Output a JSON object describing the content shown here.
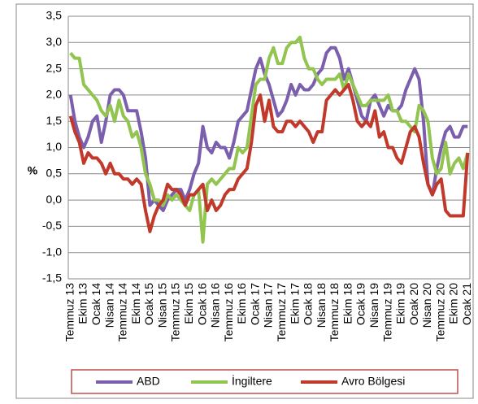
{
  "chart_data": {
    "type": "line",
    "y_label": "%",
    "categories": [
      "Temmuz 13",
      null,
      null,
      "Ekim 13",
      null,
      null,
      "Ocak 14",
      null,
      null,
      "Nisan 14",
      null,
      null,
      "Temmuz 14",
      null,
      null,
      "Ekim 14",
      null,
      null,
      "Ocak 15",
      null,
      null,
      "Nisan 15",
      null,
      null,
      "Temmuz 15",
      null,
      null,
      "Ekim 15",
      null,
      null,
      "Ocak 16",
      null,
      null,
      "Nisan 16",
      null,
      null,
      "Temmuz 16",
      null,
      null,
      "Ekim 16",
      null,
      null,
      "Ocak 17",
      null,
      null,
      "Nisan 17",
      null,
      null,
      "Temmuz 17",
      null,
      null,
      "Ekim 17",
      null,
      null,
      "Ocak 18",
      null,
      null,
      "Nisan 18",
      null,
      null,
      "Temmuz 18",
      null,
      null,
      "Ekim 18",
      null,
      null,
      "Ocak 19",
      null,
      null,
      "Nisan 19",
      null,
      null,
      "Temmuz 19",
      null,
      null,
      "Ekim 19",
      null,
      null,
      "Ocak 20",
      null,
      null,
      "Nisan 20",
      null,
      null,
      "Temmuz 20",
      null,
      null,
      "Ekim 20",
      null,
      null,
      "Ocak 21"
    ],
    "series": [
      {
        "name": "ABD",
        "color": "#7b5fac",
        "values": [
          2.0,
          1.5,
          1.2,
          1.0,
          1.2,
          1.5,
          1.6,
          1.1,
          1.5,
          2.0,
          2.1,
          2.1,
          2.0,
          1.7,
          1.7,
          1.7,
          1.3,
          0.8,
          -0.1,
          0.0,
          -0.1,
          -0.2,
          0.0,
          0.1,
          0.2,
          0.2,
          0.0,
          0.2,
          0.5,
          0.7,
          1.4,
          1.0,
          0.9,
          1.1,
          1.0,
          1.0,
          0.8,
          1.1,
          1.5,
          1.6,
          1.7,
          2.1,
          2.5,
          2.7,
          2.4,
          2.2,
          1.9,
          1.6,
          1.7,
          1.9,
          2.2,
          2.0,
          2.2,
          2.1,
          2.1,
          2.2,
          2.4,
          2.5,
          2.8,
          2.9,
          2.9,
          2.7,
          2.3,
          2.5,
          2.2,
          1.9,
          1.6,
          1.5,
          1.9,
          2.0,
          1.8,
          1.6,
          1.8,
          1.7,
          1.7,
          1.8,
          2.1,
          2.3,
          2.5,
          2.3,
          1.5,
          0.3,
          0.1,
          0.6,
          1.0,
          1.3,
          1.4,
          1.2,
          1.2,
          1.4,
          1.4
        ]
      },
      {
        "name": "İngiltere",
        "color": "#92c450",
        "values": [
          2.8,
          2.7,
          2.7,
          2.2,
          2.1,
          2.0,
          1.9,
          1.7,
          1.6,
          1.8,
          1.5,
          1.9,
          1.6,
          1.5,
          1.2,
          1.3,
          1.0,
          0.5,
          0.3,
          0.0,
          0.0,
          -0.1,
          0.1,
          0.0,
          0.1,
          0.0,
          -0.1,
          -0.2,
          0.1,
          0.2,
          -0.8,
          0.3,
          0.4,
          0.3,
          0.4,
          0.5,
          0.6,
          0.6,
          1.0,
          0.9,
          1.0,
          1.6,
          2.2,
          2.3,
          2.3,
          2.7,
          2.9,
          2.6,
          2.6,
          2.9,
          3.0,
          3.0,
          3.1,
          2.7,
          2.5,
          2.5,
          2.3,
          2.2,
          2.3,
          2.3,
          2.3,
          2.4,
          2.1,
          2.4,
          2.2,
          2.0,
          1.8,
          1.8,
          1.9,
          1.9,
          1.9,
          1.9,
          2.0,
          1.7,
          1.7,
          1.5,
          1.5,
          1.4,
          1.3,
          1.8,
          1.7,
          1.5,
          0.8,
          0.5,
          0.6,
          1.1,
          0.5,
          0.7,
          0.8,
          0.6,
          0.9
        ]
      },
      {
        "name": "Avro Bölgesi",
        "color": "#c0392b",
        "values": [
          1.6,
          1.3,
          1.1,
          0.7,
          0.9,
          0.8,
          0.8,
          0.7,
          0.5,
          0.7,
          0.5,
          0.5,
          0.4,
          0.4,
          0.3,
          0.4,
          0.3,
          -0.2,
          -0.6,
          -0.3,
          -0.1,
          0.0,
          0.3,
          0.2,
          0.2,
          0.1,
          -0.1,
          0.1,
          0.1,
          0.2,
          0.3,
          -0.2,
          0.0,
          -0.2,
          -0.1,
          0.1,
          0.2,
          0.2,
          0.4,
          0.5,
          0.6,
          1.1,
          1.8,
          2.0,
          1.5,
          1.9,
          1.4,
          1.3,
          1.3,
          1.5,
          1.5,
          1.4,
          1.5,
          1.4,
          1.3,
          1.1,
          1.3,
          1.3,
          1.9,
          2.0,
          2.1,
          2.0,
          2.1,
          2.2,
          1.9,
          1.5,
          1.4,
          1.5,
          1.4,
          1.7,
          1.2,
          1.3,
          1.0,
          1.0,
          0.8,
          0.7,
          1.0,
          1.3,
          1.4,
          1.2,
          0.7,
          0.3,
          0.1,
          0.3,
          0.4,
          -0.2,
          -0.3,
          -0.3,
          -0.3,
          -0.3,
          0.9
        ]
      }
    ],
    "ylim": [
      -1.5,
      3.5
    ],
    "yticks": [
      {
        "value": -1.5,
        "label": "-1,5"
      },
      {
        "value": -1.0,
        "label": "-1,0"
      },
      {
        "value": -0.5,
        "label": "-0,5"
      },
      {
        "value": 0,
        "label": "0,0"
      },
      {
        "value": 0.5,
        "label": "0,5"
      },
      {
        "value": 1.0,
        "label": "1,0"
      },
      {
        "value": 1.5,
        "label": "1,5"
      },
      {
        "value": 2.0,
        "label": "2,0"
      },
      {
        "value": 2.5,
        "label": "2,5"
      },
      {
        "value": 3.0,
        "label": "3,0"
      },
      {
        "value": 3.5,
        "label": "3,5"
      }
    ],
    "grid": true,
    "legend": "bottom"
  }
}
